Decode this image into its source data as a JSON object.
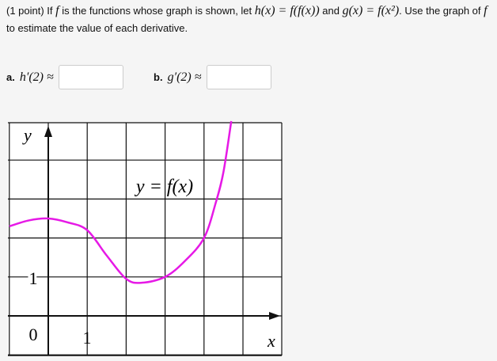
{
  "question": {
    "points": "(1 point) If",
    "f": "f",
    "text1": "is the functions whose graph is shown, let",
    "h_def": "h(x) = f(f(x))",
    "and": "and",
    "g_def": "g(x) = f(x²)",
    "text2": ". Use the graph of",
    "f2": "f",
    "text3": "to estimate the value of each derivative."
  },
  "answers": [
    {
      "label": "a.",
      "expr": "h′(2) ≈",
      "value": ""
    },
    {
      "label": "b.",
      "expr": "g′(2) ≈",
      "value": ""
    }
  ],
  "chart_data": {
    "type": "line",
    "xlabel": "x",
    "ylabel": "y",
    "curve_label": "y = f(x)",
    "x_tick_labels": [
      "0",
      "1"
    ],
    "y_tick_labels": [
      "1"
    ],
    "xlim": [
      -1,
      6
    ],
    "ylim": [
      -1,
      5
    ],
    "grid": true,
    "curve_color": "#e619e6",
    "points": [
      [
        -1,
        2.3
      ],
      [
        -0.5,
        2.45
      ],
      [
        0,
        2.5
      ],
      [
        0.5,
        2.4
      ],
      [
        1,
        2.2
      ],
      [
        1.5,
        1.55
      ],
      [
        2,
        0.95
      ],
      [
        2.4,
        0.85
      ],
      [
        3,
        1.0
      ],
      [
        3.5,
        1.4
      ],
      [
        4,
        2.0
      ],
      [
        4.3,
        2.9
      ],
      [
        4.5,
        3.7
      ],
      [
        4.7,
        5.0
      ]
    ]
  }
}
